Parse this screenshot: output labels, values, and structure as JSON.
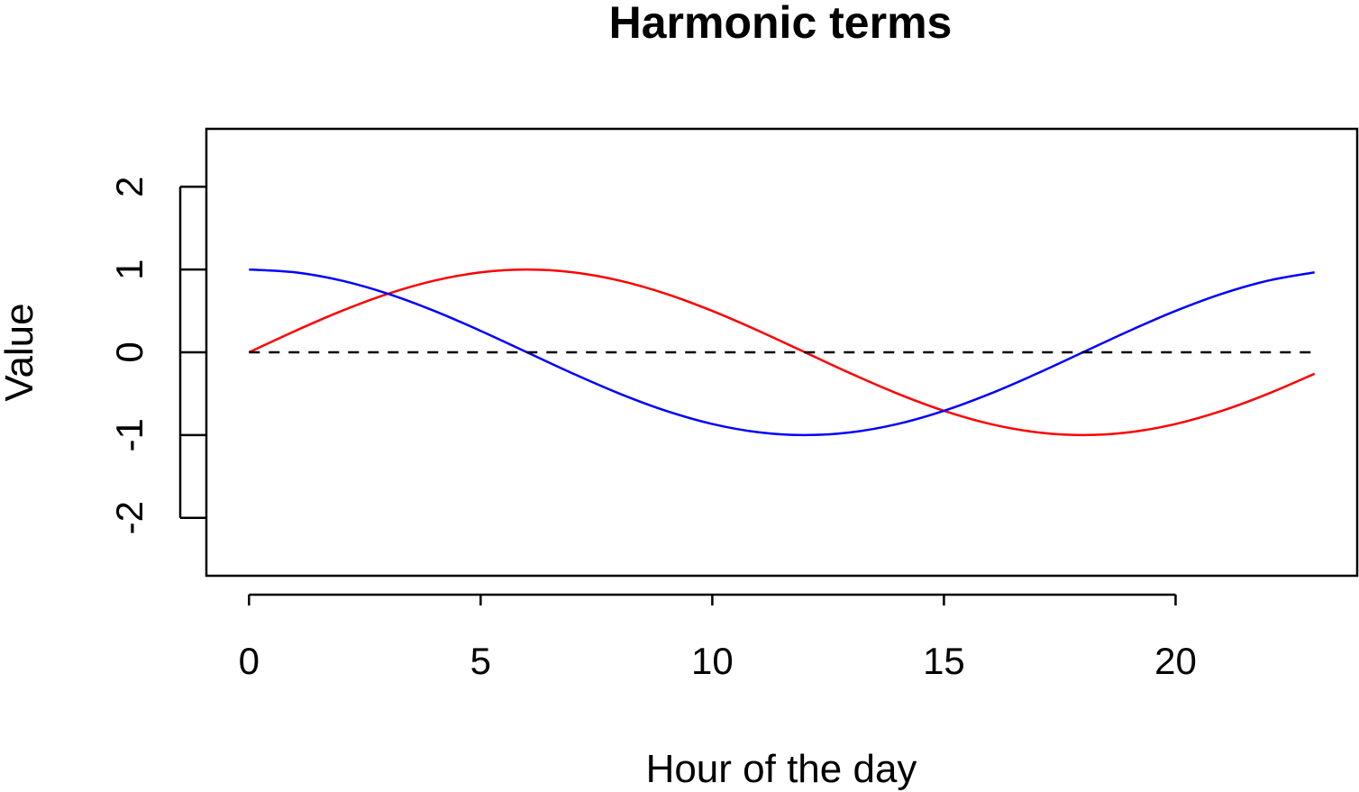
{
  "chart_data": {
    "type": "line",
    "title": "Harmonic terms",
    "xlabel": "Hour of the day",
    "ylabel": "Value",
    "xlim": [
      -0.92,
      23.92
    ],
    "ylim": [
      -2.7,
      2.7
    ],
    "x_ticks": [
      0,
      5,
      10,
      15,
      20
    ],
    "y_ticks": [
      -2,
      -1,
      0,
      1,
      2
    ],
    "x_tick_labels": [
      "0",
      "5",
      "10",
      "15",
      "20"
    ],
    "y_tick_labels": [
      "-2",
      "-1",
      "0",
      "1",
      "2"
    ],
    "grid": false,
    "legend": "none",
    "series": [
      {
        "color": "#ff0000",
        "style": "solid",
        "x": [
          0,
          1,
          2,
          3,
          4,
          5,
          6,
          7,
          8,
          9,
          10,
          11,
          12,
          13,
          14,
          15,
          16,
          17,
          18,
          19,
          20,
          21,
          22,
          23
        ],
        "y": [
          0,
          0.259,
          0.5,
          0.707,
          0.866,
          0.966,
          1,
          0.966,
          0.866,
          0.707,
          0.5,
          0.259,
          0,
          -0.259,
          -0.5,
          -0.707,
          -0.866,
          -0.966,
          -1,
          -0.966,
          -0.866,
          -0.707,
          -0.5,
          -0.259
        ]
      },
      {
        "color": "#0000ff",
        "style": "solid",
        "x": [
          0,
          1,
          2,
          3,
          4,
          5,
          6,
          7,
          8,
          9,
          10,
          11,
          12,
          13,
          14,
          15,
          16,
          17,
          18,
          19,
          20,
          21,
          22,
          23
        ],
        "y": [
          1,
          0.966,
          0.866,
          0.707,
          0.5,
          0.259,
          0,
          -0.259,
          -0.5,
          -0.707,
          -0.866,
          -0.966,
          -1,
          -0.966,
          -0.866,
          -0.707,
          -0.5,
          -0.259,
          0,
          0.259,
          0.5,
          0.707,
          0.866,
          0.966
        ]
      },
      {
        "color": "#000000",
        "style": "dashed",
        "x": [
          0,
          23
        ],
        "y": [
          0,
          0
        ]
      }
    ]
  }
}
